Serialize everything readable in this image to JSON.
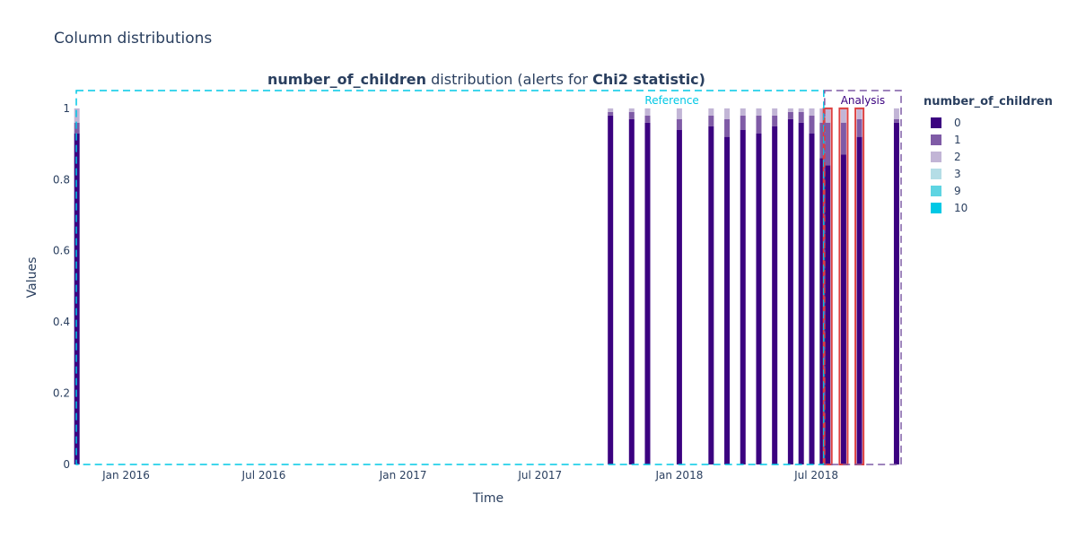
{
  "page": {
    "title": "Column distributions"
  },
  "chart_data": {
    "type": "bar",
    "stacked": true,
    "title": {
      "parts": [
        {
          "text": "number_of_children",
          "bold": true
        },
        {
          "text": " distribution (alerts for ",
          "bold": false
        },
        {
          "text": "Chi2 statistic)",
          "bold": true
        }
      ]
    },
    "xlabel": "Time",
    "ylabel": "Values",
    "x_range": [
      "2015-10-26",
      "2018-10-21"
    ],
    "ylim": [
      0,
      1.05
    ],
    "x_ticks": [
      {
        "date": "2016-01-01",
        "label": "Jan 2016"
      },
      {
        "date": "2016-07-01",
        "label": "Jul 2016"
      },
      {
        "date": "2017-01-01",
        "label": "Jan 2017"
      },
      {
        "date": "2017-07-01",
        "label": "Jul 2017"
      },
      {
        "date": "2018-01-01",
        "label": "Jan 2018"
      },
      {
        "date": "2018-07-01",
        "label": "Jul 2018"
      }
    ],
    "y_ticks": [
      {
        "value": 0,
        "label": "0"
      },
      {
        "value": 0.2,
        "label": "0.2"
      },
      {
        "value": 0.4,
        "label": "0.4"
      },
      {
        "value": 0.6,
        "label": "0.6"
      },
      {
        "value": 0.8,
        "label": "0.8"
      },
      {
        "value": 1,
        "label": "1"
      }
    ],
    "legend_title": "number_of_children",
    "legend_position": "right",
    "series": [
      {
        "name": "0",
        "color": "#3b0280"
      },
      {
        "name": "1",
        "color": "#7f5ba6"
      },
      {
        "name": "2",
        "color": "#c2b5d6"
      },
      {
        "name": "3",
        "color": "#b4dde6"
      },
      {
        "name": "9",
        "color": "#5ed4e2"
      },
      {
        "name": "10",
        "color": "#00c8e5"
      }
    ],
    "bars": [
      {
        "date": "2015-10-28",
        "values": [
          0.93,
          0.03,
          0.04
        ],
        "period": "reference",
        "alert": false
      },
      {
        "date": "2017-10-02",
        "values": [
          0.98,
          0.01,
          0.01
        ],
        "period": "reference",
        "alert": false
      },
      {
        "date": "2017-10-30",
        "values": [
          0.97,
          0.02,
          0.01
        ],
        "period": "reference",
        "alert": false
      },
      {
        "date": "2017-11-20",
        "values": [
          0.96,
          0.02,
          0.02
        ],
        "period": "reference",
        "alert": false
      },
      {
        "date": "2018-01-01",
        "values": [
          0.94,
          0.03,
          0.03
        ],
        "period": "reference",
        "alert": false
      },
      {
        "date": "2018-02-12",
        "values": [
          0.95,
          0.03,
          0.02
        ],
        "period": "reference",
        "alert": false
      },
      {
        "date": "2018-03-05",
        "values": [
          0.92,
          0.05,
          0.03
        ],
        "period": "reference",
        "alert": false
      },
      {
        "date": "2018-03-26",
        "values": [
          0.94,
          0.04,
          0.02
        ],
        "period": "reference",
        "alert": false
      },
      {
        "date": "2018-04-16",
        "values": [
          0.93,
          0.05,
          0.02
        ],
        "period": "reference",
        "alert": false
      },
      {
        "date": "2018-05-07",
        "values": [
          0.95,
          0.03,
          0.02
        ],
        "period": "reference",
        "alert": false
      },
      {
        "date": "2018-05-28",
        "values": [
          0.97,
          0.02,
          0.01
        ],
        "period": "reference",
        "alert": false
      },
      {
        "date": "2018-06-11",
        "values": [
          0.96,
          0.03,
          0.01
        ],
        "period": "reference",
        "alert": false
      },
      {
        "date": "2018-06-25",
        "values": [
          0.93,
          0.05,
          0.02
        ],
        "period": "reference",
        "alert": false
      },
      {
        "date": "2018-07-09",
        "values": [
          0.86,
          0.1,
          0.04
        ],
        "period": "reference",
        "alert": false
      },
      {
        "date": "2018-07-16",
        "values": [
          0.84,
          0.12,
          0.04
        ],
        "period": "analysis",
        "alert": true
      },
      {
        "date": "2018-08-06",
        "values": [
          0.87,
          0.09,
          0.04
        ],
        "period": "analysis",
        "alert": true
      },
      {
        "date": "2018-08-27",
        "values": [
          0.92,
          0.05,
          0.03
        ],
        "period": "analysis",
        "alert": true
      },
      {
        "date": "2018-10-15",
        "values": [
          0.96,
          0.01,
          0.03
        ],
        "period": "analysis",
        "alert": false
      }
    ],
    "reference": {
      "label": "Reference",
      "start": "2015-10-26",
      "end": "2018-07-12",
      "color": "#00c8e5"
    },
    "analysis": {
      "label": "Analysis",
      "start": "2018-07-12",
      "end": "2018-10-21",
      "color": "#3b0280"
    },
    "alert_color": "#dd4040"
  }
}
